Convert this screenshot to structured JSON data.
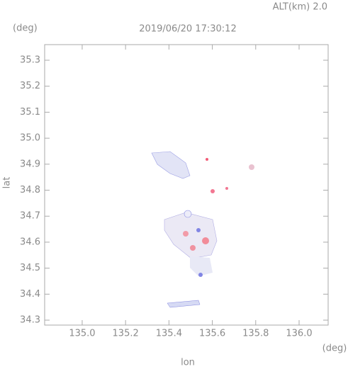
{
  "chart_data": {
    "type": "map",
    "title": "2019/06/20 17:30:12",
    "altitude_label": "ALT(km) 2.0",
    "x_label": "lon",
    "y_label": "lat",
    "x_unit": "(deg)",
    "y_unit": "(deg)",
    "xlim": [
      134.827,
      136.134
    ],
    "ylim": [
      34.281,
      35.36
    ],
    "xticks": [
      {
        "value": 135,
        "label": "135.0"
      },
      135.2,
      135.4,
      135.6,
      135.8,
      {
        "value": 136,
        "label": "136.0"
      }
    ],
    "yticks": [
      34.3,
      34.4,
      34.5,
      34.6,
      34.7,
      34.8,
      34.9,
      {
        "value": 35,
        "label": "35.0"
      },
      35.1,
      35.2,
      35.3
    ]
  }
}
